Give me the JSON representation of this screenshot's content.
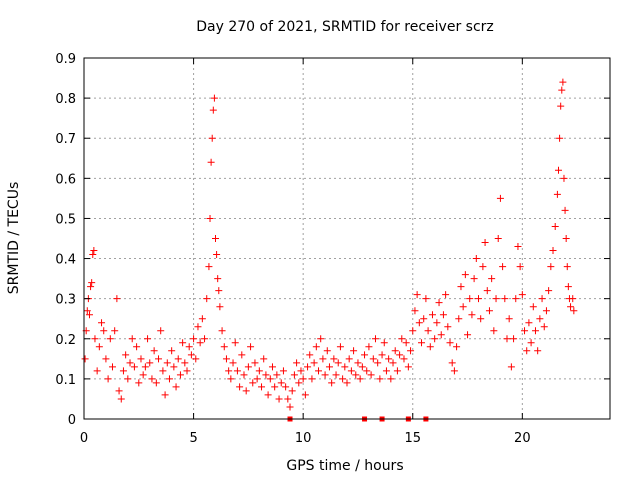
{
  "chart_data": {
    "type": "scatter",
    "title": "Day 270 of 2021, SRMTID for receiver scrz",
    "xlabel": "GPS time / hours",
    "ylabel": "SRMTID / TECUs",
    "xlim": [
      0,
      24
    ],
    "ylim": [
      0,
      0.9
    ],
    "xticks": [
      0,
      5,
      10,
      15,
      20
    ],
    "xtick_labels": [
      "0",
      "5",
      "10",
      "15",
      "20"
    ],
    "yticks": [
      0,
      0.1,
      0.2,
      0.3,
      0.4,
      0.5,
      0.6,
      0.7,
      0.8,
      0.9
    ],
    "ytick_labels": [
      "0",
      "0.1",
      "0.2",
      "0.3",
      "0.4",
      "0.5",
      "0.6",
      "0.7",
      "0.8",
      "0.9"
    ],
    "grid": true,
    "marker": "+",
    "series": [
      {
        "name": "SRMTID",
        "color": "#ff0000",
        "points": [
          [
            0.05,
            0.15
          ],
          [
            0.1,
            0.22
          ],
          [
            0.15,
            0.27
          ],
          [
            0.2,
            0.3
          ],
          [
            0.25,
            0.26
          ],
          [
            0.3,
            0.33
          ],
          [
            0.35,
            0.34
          ],
          [
            0.4,
            0.41
          ],
          [
            0.45,
            0.42
          ],
          [
            0.5,
            0.2
          ],
          [
            0.6,
            0.12
          ],
          [
            0.7,
            0.18
          ],
          [
            0.8,
            0.24
          ],
          [
            0.9,
            0.22
          ],
          [
            1.0,
            0.15
          ],
          [
            1.1,
            0.1
          ],
          [
            1.2,
            0.2
          ],
          [
            1.3,
            0.13
          ],
          [
            1.4,
            0.22
          ],
          [
            1.5,
            0.3
          ],
          [
            1.6,
            0.07
          ],
          [
            1.7,
            0.05
          ],
          [
            1.8,
            0.12
          ],
          [
            1.9,
            0.16
          ],
          [
            2.0,
            0.1
          ],
          [
            2.1,
            0.14
          ],
          [
            2.2,
            0.2
          ],
          [
            2.3,
            0.13
          ],
          [
            2.4,
            0.18
          ],
          [
            2.5,
            0.09
          ],
          [
            2.6,
            0.15
          ],
          [
            2.7,
            0.11
          ],
          [
            2.8,
            0.13
          ],
          [
            2.9,
            0.2
          ],
          [
            3.0,
            0.14
          ],
          [
            3.1,
            0.1
          ],
          [
            3.2,
            0.17
          ],
          [
            3.3,
            0.09
          ],
          [
            3.4,
            0.15
          ],
          [
            3.5,
            0.22
          ],
          [
            3.6,
            0.12
          ],
          [
            3.7,
            0.06
          ],
          [
            3.8,
            0.14
          ],
          [
            3.9,
            0.1
          ],
          [
            4.0,
            0.17
          ],
          [
            4.1,
            0.13
          ],
          [
            4.2,
            0.08
          ],
          [
            4.3,
            0.15
          ],
          [
            4.4,
            0.11
          ],
          [
            4.5,
            0.19
          ],
          [
            4.6,
            0.14
          ],
          [
            4.7,
            0.12
          ],
          [
            4.8,
            0.18
          ],
          [
            4.9,
            0.16
          ],
          [
            5.0,
            0.2
          ],
          [
            5.1,
            0.15
          ],
          [
            5.2,
            0.23
          ],
          [
            5.3,
            0.19
          ],
          [
            5.4,
            0.25
          ],
          [
            5.5,
            0.2
          ],
          [
            5.6,
            0.3
          ],
          [
            5.7,
            0.38
          ],
          [
            5.75,
            0.5
          ],
          [
            5.8,
            0.64
          ],
          [
            5.85,
            0.7
          ],
          [
            5.9,
            0.77
          ],
          [
            5.95,
            0.8
          ],
          [
            6.0,
            0.45
          ],
          [
            6.05,
            0.41
          ],
          [
            6.1,
            0.35
          ],
          [
            6.15,
            0.32
          ],
          [
            6.2,
            0.28
          ],
          [
            6.3,
            0.22
          ],
          [
            6.4,
            0.18
          ],
          [
            6.5,
            0.15
          ],
          [
            6.6,
            0.12
          ],
          [
            6.7,
            0.1
          ],
          [
            6.8,
            0.14
          ],
          [
            6.9,
            0.19
          ],
          [
            7.0,
            0.12
          ],
          [
            7.1,
            0.08
          ],
          [
            7.2,
            0.16
          ],
          [
            7.3,
            0.11
          ],
          [
            7.4,
            0.07
          ],
          [
            7.5,
            0.13
          ],
          [
            7.6,
            0.18
          ],
          [
            7.7,
            0.09
          ],
          [
            7.8,
            0.14
          ],
          [
            7.9,
            0.1
          ],
          [
            8.0,
            0.12
          ],
          [
            8.1,
            0.08
          ],
          [
            8.2,
            0.15
          ],
          [
            8.3,
            0.11
          ],
          [
            8.4,
            0.06
          ],
          [
            8.5,
            0.1
          ],
          [
            8.6,
            0.13
          ],
          [
            8.7,
            0.08
          ],
          [
            8.8,
            0.11
          ],
          [
            8.9,
            0.05
          ],
          [
            9.0,
            0.09
          ],
          [
            9.1,
            0.12
          ],
          [
            9.2,
            0.08
          ],
          [
            9.3,
            0.05
          ],
          [
            9.4,
            0.03
          ],
          [
            9.5,
            0.07
          ],
          [
            9.6,
            0.11
          ],
          [
            9.7,
            0.14
          ],
          [
            9.8,
            0.09
          ],
          [
            9.9,
            0.12
          ],
          [
            10.0,
            0.1
          ],
          [
            10.1,
            0.06
          ],
          [
            10.2,
            0.13
          ],
          [
            10.3,
            0.16
          ],
          [
            10.4,
            0.1
          ],
          [
            10.5,
            0.14
          ],
          [
            10.6,
            0.18
          ],
          [
            10.7,
            0.12
          ],
          [
            10.8,
            0.2
          ],
          [
            10.9,
            0.15
          ],
          [
            11.0,
            0.11
          ],
          [
            11.1,
            0.17
          ],
          [
            11.2,
            0.13
          ],
          [
            11.3,
            0.09
          ],
          [
            11.4,
            0.15
          ],
          [
            11.5,
            0.11
          ],
          [
            11.6,
            0.14
          ],
          [
            11.7,
            0.18
          ],
          [
            11.8,
            0.1
          ],
          [
            11.9,
            0.13
          ],
          [
            12.0,
            0.09
          ],
          [
            12.1,
            0.15
          ],
          [
            12.2,
            0.12
          ],
          [
            12.3,
            0.17
          ],
          [
            12.4,
            0.11
          ],
          [
            12.5,
            0.14
          ],
          [
            12.6,
            0.1
          ],
          [
            12.7,
            0.13
          ],
          [
            12.8,
            0.16
          ],
          [
            12.9,
            0.12
          ],
          [
            13.0,
            0.18
          ],
          [
            13.1,
            0.11
          ],
          [
            13.2,
            0.15
          ],
          [
            13.3,
            0.2
          ],
          [
            13.4,
            0.14
          ],
          [
            13.5,
            0.1
          ],
          [
            13.6,
            0.16
          ],
          [
            13.7,
            0.19
          ],
          [
            13.8,
            0.12
          ],
          [
            13.9,
            0.15
          ],
          [
            14.0,
            0.1
          ],
          [
            14.1,
            0.14
          ],
          [
            14.2,
            0.17
          ],
          [
            14.3,
            0.12
          ],
          [
            14.4,
            0.16
          ],
          [
            14.5,
            0.2
          ],
          [
            14.6,
            0.15
          ],
          [
            14.7,
            0.19
          ],
          [
            14.8,
            0.13
          ],
          [
            14.9,
            0.17
          ],
          [
            15.0,
            0.22
          ],
          [
            15.1,
            0.27
          ],
          [
            15.2,
            0.31
          ],
          [
            15.3,
            0.24
          ],
          [
            15.4,
            0.19
          ],
          [
            15.5,
            0.25
          ],
          [
            15.6,
            0.3
          ],
          [
            15.7,
            0.22
          ],
          [
            15.8,
            0.18
          ],
          [
            15.9,
            0.26
          ],
          [
            16.0,
            0.2
          ],
          [
            16.1,
            0.24
          ],
          [
            16.2,
            0.29
          ],
          [
            16.3,
            0.21
          ],
          [
            16.4,
            0.26
          ],
          [
            16.5,
            0.31
          ],
          [
            16.6,
            0.23
          ],
          [
            16.7,
            0.19
          ],
          [
            16.8,
            0.14
          ],
          [
            16.9,
            0.12
          ],
          [
            17.0,
            0.18
          ],
          [
            17.1,
            0.25
          ],
          [
            17.2,
            0.33
          ],
          [
            17.3,
            0.28
          ],
          [
            17.4,
            0.36
          ],
          [
            17.5,
            0.21
          ],
          [
            17.6,
            0.3
          ],
          [
            17.7,
            0.26
          ],
          [
            17.8,
            0.35
          ],
          [
            17.9,
            0.4
          ],
          [
            18.0,
            0.3
          ],
          [
            18.1,
            0.25
          ],
          [
            18.2,
            0.38
          ],
          [
            18.3,
            0.44
          ],
          [
            18.4,
            0.32
          ],
          [
            18.5,
            0.27
          ],
          [
            18.6,
            0.35
          ],
          [
            18.7,
            0.22
          ],
          [
            18.8,
            0.3
          ],
          [
            18.9,
            0.45
          ],
          [
            19.0,
            0.55
          ],
          [
            19.1,
            0.38
          ],
          [
            19.2,
            0.3
          ],
          [
            19.3,
            0.2
          ],
          [
            19.4,
            0.25
          ],
          [
            19.5,
            0.13
          ],
          [
            19.6,
            0.2
          ],
          [
            19.7,
            0.3
          ],
          [
            19.8,
            0.43
          ],
          [
            19.9,
            0.38
          ],
          [
            20.0,
            0.31
          ],
          [
            20.1,
            0.22
          ],
          [
            20.2,
            0.17
          ],
          [
            20.3,
            0.24
          ],
          [
            20.4,
            0.19
          ],
          [
            20.5,
            0.28
          ],
          [
            20.6,
            0.22
          ],
          [
            20.7,
            0.17
          ],
          [
            20.8,
            0.25
          ],
          [
            20.9,
            0.3
          ],
          [
            21.0,
            0.23
          ],
          [
            21.1,
            0.27
          ],
          [
            21.2,
            0.32
          ],
          [
            21.3,
            0.38
          ],
          [
            21.4,
            0.42
          ],
          [
            21.5,
            0.48
          ],
          [
            21.6,
            0.56
          ],
          [
            21.65,
            0.62
          ],
          [
            21.7,
            0.7
          ],
          [
            21.75,
            0.78
          ],
          [
            21.8,
            0.82
          ],
          [
            21.85,
            0.84
          ],
          [
            21.9,
            0.6
          ],
          [
            21.95,
            0.52
          ],
          [
            22.0,
            0.45
          ],
          [
            22.05,
            0.38
          ],
          [
            22.1,
            0.33
          ],
          [
            22.15,
            0.3
          ],
          [
            22.2,
            0.28
          ],
          [
            22.3,
            0.3
          ],
          [
            22.35,
            0.27
          ]
        ]
      }
    ],
    "zero_markers": [
      9.4,
      12.8,
      13.6,
      14.8,
      15.6
    ]
  }
}
